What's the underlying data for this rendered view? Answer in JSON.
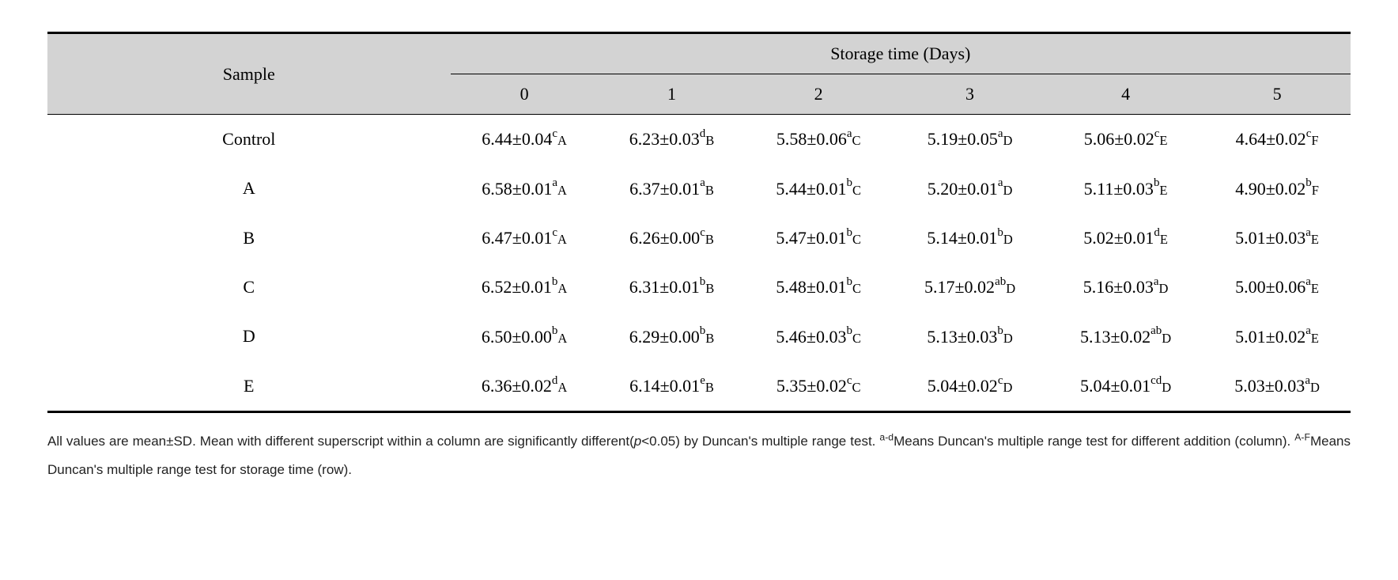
{
  "table": {
    "sample_header": "Sample",
    "span_header": "Storage time (Days)",
    "day_headers": [
      "0",
      "1",
      "2",
      "3",
      "4",
      "5"
    ],
    "header_bg": "#d3d3d3",
    "border_color": "#000000",
    "rows": [
      {
        "sample": "Control",
        "cells": [
          {
            "value": "6.44±0.04",
            "sup": "c",
            "sub": "A"
          },
          {
            "value": "6.23±0.03",
            "sup": "d",
            "sub": "B"
          },
          {
            "value": "5.58±0.06",
            "sup": "a",
            "sub": "C"
          },
          {
            "value": "5.19±0.05",
            "sup": "a",
            "sub": "D"
          },
          {
            "value": "5.06±0.02",
            "sup": "c",
            "sub": "E"
          },
          {
            "value": "4.64±0.02",
            "sup": "c",
            "sub": "F"
          }
        ]
      },
      {
        "sample": "A",
        "cells": [
          {
            "value": "6.58±0.01",
            "sup": "a",
            "sub": "A"
          },
          {
            "value": "6.37±0.01",
            "sup": "a",
            "sub": "B"
          },
          {
            "value": "5.44±0.01",
            "sup": "b",
            "sub": "C"
          },
          {
            "value": "5.20±0.01",
            "sup": "a",
            "sub": "D"
          },
          {
            "value": "5.11±0.03",
            "sup": "b",
            "sub": "E"
          },
          {
            "value": "4.90±0.02",
            "sup": "b",
            "sub": "F"
          }
        ]
      },
      {
        "sample": "B",
        "cells": [
          {
            "value": "6.47±0.01",
            "sup": "c",
            "sub": "A"
          },
          {
            "value": "6.26±0.00",
            "sup": "c",
            "sub": "B"
          },
          {
            "value": "5.47±0.01",
            "sup": "b",
            "sub": "C"
          },
          {
            "value": "5.14±0.01",
            "sup": "b",
            "sub": "D"
          },
          {
            "value": "5.02±0.01",
            "sup": "d",
            "sub": "E"
          },
          {
            "value": "5.01±0.03",
            "sup": "a",
            "sub": "E"
          }
        ]
      },
      {
        "sample": "C",
        "cells": [
          {
            "value": "6.52±0.01",
            "sup": "b",
            "sub": "A"
          },
          {
            "value": "6.31±0.01",
            "sup": "b",
            "sub": "B"
          },
          {
            "value": "5.48±0.01",
            "sup": "b",
            "sub": "C"
          },
          {
            "value": "5.17±0.02",
            "sup": "ab",
            "sub": "D"
          },
          {
            "value": "5.16±0.03",
            "sup": "a",
            "sub": "D"
          },
          {
            "value": "5.00±0.06",
            "sup": "a",
            "sub": "E"
          }
        ]
      },
      {
        "sample": "D",
        "cells": [
          {
            "value": "6.50±0.00",
            "sup": "b",
            "sub": "A"
          },
          {
            "value": "6.29±0.00",
            "sup": "b",
            "sub": "B"
          },
          {
            "value": "5.46±0.03",
            "sup": "b",
            "sub": "C"
          },
          {
            "value": "5.13±0.03",
            "sup": "b",
            "sub": "D"
          },
          {
            "value": "5.13±0.02",
            "sup": "ab",
            "sub": "D"
          },
          {
            "value": "5.01±0.02",
            "sup": "a",
            "sub": "E"
          }
        ]
      },
      {
        "sample": "E",
        "cells": [
          {
            "value": "6.36±0.02",
            "sup": "d",
            "sub": "A"
          },
          {
            "value": "6.14±0.01",
            "sup": "e",
            "sub": "B"
          },
          {
            "value": "5.35±0.02",
            "sup": "c",
            "sub": "C"
          },
          {
            "value": "5.04±0.02",
            "sup": "c",
            "sub": "D"
          },
          {
            "value": "5.04±0.01",
            "sup": "cd",
            "sub": "D"
          },
          {
            "value": "5.03±0.03",
            "sup": "a",
            "sub": "D"
          }
        ]
      }
    ]
  },
  "footnote": {
    "text_1": "All values are mean±SD. Mean with different superscript within a column are significantly different(",
    "p_text": "p",
    "text_1b": "<0.05) by Duncan's multiple range test. ",
    "sup_ad": "a-d",
    "text_2": "Means Duncan's multiple range test for different addition (column). ",
    "sup_AF": "A-F",
    "text_3": "Means Duncan's multiple range test for storage time (row)."
  }
}
